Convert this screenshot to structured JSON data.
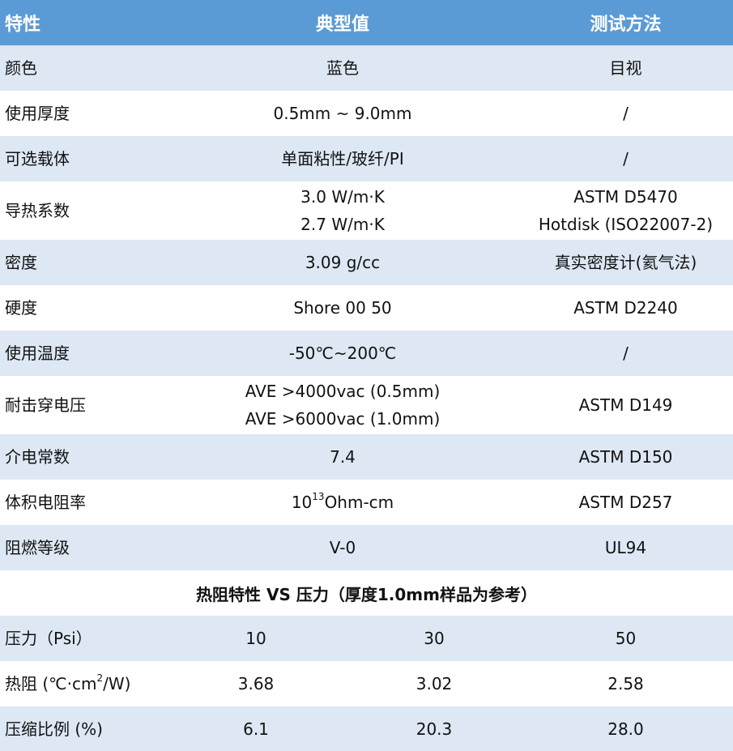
{
  "header": {
    "col1": "特性",
    "col2": "典型值",
    "col3": "测试方法"
  },
  "rows": [
    {
      "name": "颜色",
      "value": [
        "蓝色"
      ],
      "method": [
        "目视"
      ]
    },
    {
      "name": "使用厚度",
      "value": [
        "0.5mm ~ 9.0mm"
      ],
      "method": [
        "/"
      ]
    },
    {
      "name": "可选载体",
      "value": [
        "单面粘性/玻纤/PI"
      ],
      "method": [
        "/"
      ]
    },
    {
      "name": "导热系数",
      "value": [
        "3.0 W/m·K",
        "2.7 W/m·K"
      ],
      "method": [
        "ASTM D5470",
        "Hotdisk (ISO22007-2)"
      ]
    },
    {
      "name": "密度",
      "value": [
        "3.09 g/cc"
      ],
      "method": [
        "真实密度计(氦气法)"
      ]
    },
    {
      "name": "硬度",
      "value": [
        "Shore 00 50"
      ],
      "method": [
        "ASTM D2240"
      ]
    },
    {
      "name": "使用温度",
      "value": [
        "-50℃~200℃"
      ],
      "method": [
        "/"
      ]
    },
    {
      "name": "耐击穿电压",
      "value": [
        "AVE >4000vac (0.5mm)",
        "AVE >6000vac (1.0mm)"
      ],
      "method": [
        "ASTM D149"
      ]
    },
    {
      "name": "介电常数",
      "value": [
        "7.4"
      ],
      "method": [
        "ASTM D150"
      ]
    },
    {
      "name": "体积电阻率",
      "value_base": "10",
      "value_exp": "13",
      "value_unit": "Ohm-cm",
      "method": [
        "ASTM D257"
      ]
    },
    {
      "name": "阻燃等级",
      "value": [
        "V-0"
      ],
      "method": [
        "UL94"
      ]
    }
  ],
  "section_title": "热阻特性 VS 压力（厚度1.0mm样品为参考）",
  "pressure_table": {
    "pressure": {
      "label": "压力（Psi）",
      "values": [
        "10",
        "30",
        "50"
      ]
    },
    "thermal_resistance": {
      "label_prefix": "热阻 (℃·cm",
      "label_exp": "2",
      "label_suffix": "/W)",
      "values": [
        "3.68",
        "3.02",
        "2.58"
      ]
    },
    "compression": {
      "label": "压缩比例 (%)",
      "values": [
        "6.1",
        "20.3",
        "28.0"
      ]
    }
  },
  "colors": {
    "header": "#5b9bd5",
    "band": "#dde8f4",
    "white": "#ffffff"
  }
}
